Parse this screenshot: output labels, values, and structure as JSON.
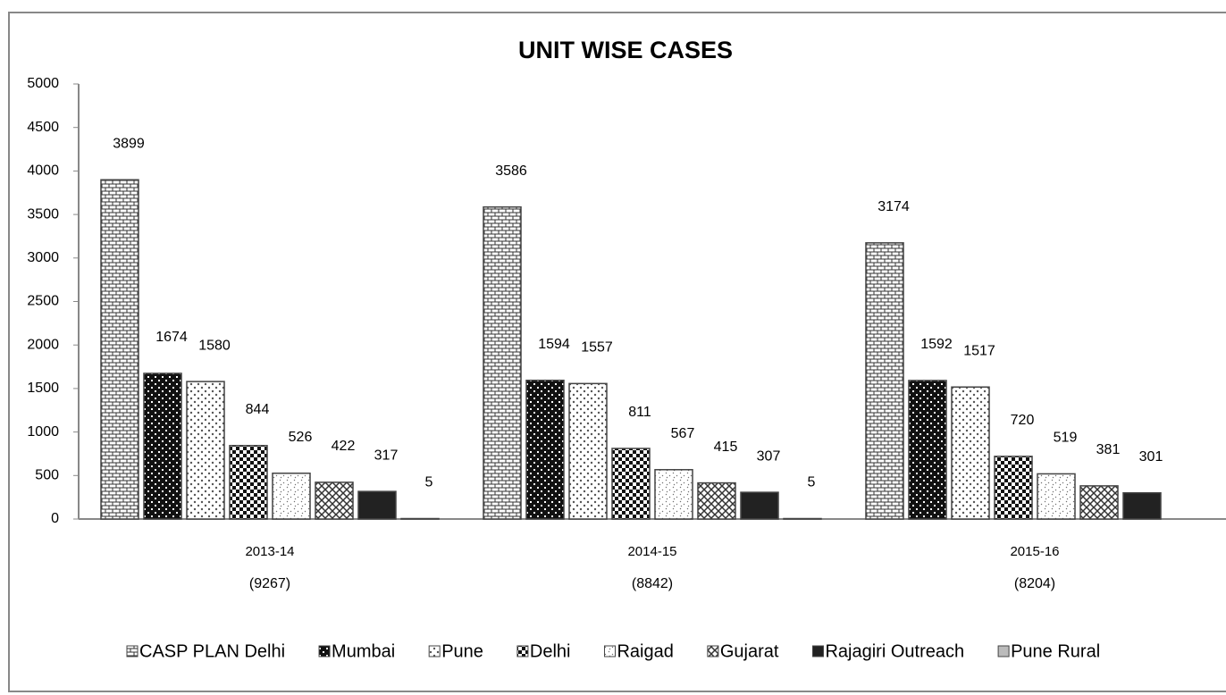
{
  "chart_data": {
    "type": "bar",
    "title": "UNIT WISE CASES",
    "categories": [
      "2013-14",
      "2014-15",
      "2015-16"
    ],
    "category_sublabels": [
      "(9267)",
      "(8842)",
      "(8204)"
    ],
    "series": [
      {
        "name": "CASP PLAN Delhi",
        "color": "#333333",
        "values": [
          3899,
          3586,
          3174
        ]
      },
      {
        "name": "Mumbai",
        "color": "#111111",
        "values": [
          1674,
          1594,
          1592
        ]
      },
      {
        "name": "Pune",
        "color": "#555555",
        "values": [
          1580,
          1557,
          1517
        ]
      },
      {
        "name": "Delhi",
        "color": "#111111",
        "values": [
          844,
          811,
          720
        ]
      },
      {
        "name": "Raigad",
        "color": "#666666",
        "values": [
          526,
          567,
          519
        ]
      },
      {
        "name": "Gujarat",
        "color": "#333333",
        "values": [
          422,
          415,
          381
        ]
      },
      {
        "name": "Rajagiri Outreach",
        "color": "#222222",
        "values": [
          317,
          307,
          301
        ]
      },
      {
        "name": "Pune Rural",
        "color": "#bbbbbb",
        "values": [
          5,
          5,
          null
        ]
      }
    ],
    "ylim": [
      0,
      5000
    ],
    "yticks": [
      0,
      500,
      1000,
      1500,
      2000,
      2500,
      3000,
      3500,
      4000,
      4500,
      5000
    ],
    "legend": "bottom"
  }
}
